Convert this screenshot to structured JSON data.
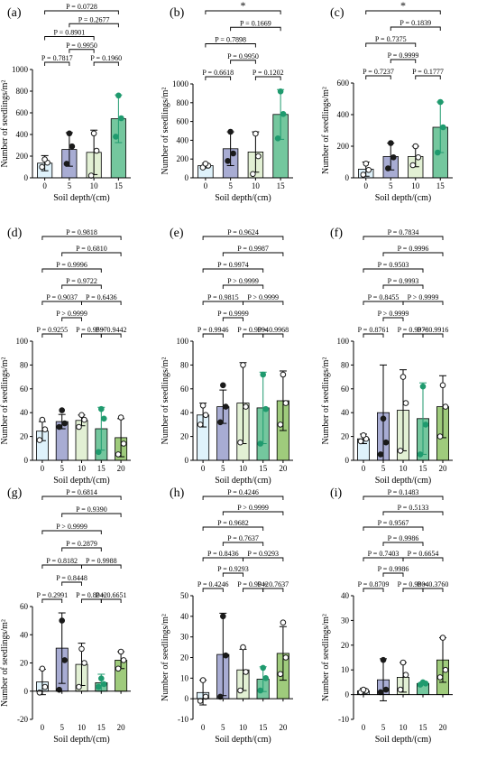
{
  "colors": {
    "d0": "#dff2fb",
    "d5": "#a8acd3",
    "d10": "#e2f0d4",
    "d15": "#74c79e",
    "d20": "#9fcb7c",
    "dot_dark": "#1a1a1a",
    "dot_green": "#1f9a6e"
  },
  "axis_title_x": "Soil depth/(cm)",
  "axis_title_y": "Number of seedlings/m²",
  "chart_data": [
    {
      "panel": "(a)",
      "type": "bar",
      "categories": [
        "0",
        "5",
        "10",
        "15"
      ],
      "values": [
        135,
        262,
        235,
        545
      ],
      "errors": [
        70,
        155,
        205,
        220
      ],
      "points": [
        [
          100,
          140,
          170
        ],
        [
          130,
          290,
          410
        ],
        [
          20,
          250,
          410
        ],
        [
          380,
          550,
          760
        ]
      ],
      "ylim": [
        0,
        1000
      ],
      "yticks": [
        0,
        200,
        400,
        600,
        800,
        1000
      ],
      "comparisons": [
        {
          "i": 0,
          "j": 3,
          "label": "P = 0.0728"
        },
        {
          "i": 1,
          "j": 3,
          "label": "P = 0.2677"
        },
        {
          "i": 0,
          "j": 2,
          "label": "P = 0.8901"
        },
        {
          "i": 1,
          "j": 2,
          "label": "P = 0.9950"
        },
        {
          "i": 0,
          "j": 1,
          "label": "P = 0.7817"
        },
        {
          "i": 2,
          "j": 3,
          "label": "P = 0.1960"
        }
      ]
    },
    {
      "panel": "(b)",
      "type": "bar",
      "categories": [
        "0",
        "5",
        "10",
        "15"
      ],
      "values": [
        130,
        310,
        275,
        675
      ],
      "errors": [
        25,
        180,
        215,
        265
      ],
      "points": [
        [
          110,
          130,
          150
        ],
        [
          180,
          260,
          490
        ],
        [
          40,
          230,
          470
        ],
        [
          420,
          680,
          920
        ]
      ],
      "ylim": [
        0,
        1000
      ],
      "yticks": [
        0,
        200,
        400,
        600,
        800,
        1000
      ],
      "comparisons": [
        {
          "i": 0,
          "j": 3,
          "label": "*"
        },
        {
          "i": 1,
          "j": 3,
          "label": "P = 0.1669"
        },
        {
          "i": 0,
          "j": 2,
          "label": "P = 0.7898"
        },
        {
          "i": 1,
          "j": 2,
          "label": "P = 0.9950"
        },
        {
          "i": 0,
          "j": 1,
          "label": "P = 0.6618"
        },
        {
          "i": 2,
          "j": 3,
          "label": "P = 0.1202"
        }
      ]
    },
    {
      "panel": "(c)",
      "type": "bar",
      "categories": [
        "0",
        "5",
        "10",
        "15"
      ],
      "values": [
        55,
        135,
        135,
        320
      ],
      "errors": [
        45,
        85,
        65,
        160
      ],
      "points": [
        [
          20,
          50,
          90
        ],
        [
          60,
          130,
          220
        ],
        [
          80,
          130,
          200
        ],
        [
          160,
          320,
          480
        ]
      ],
      "ylim": [
        0,
        600
      ],
      "yticks": [
        0,
        200,
        400,
        600
      ],
      "comparisons": [
        {
          "i": 0,
          "j": 3,
          "label": "*"
        },
        {
          "i": 1,
          "j": 3,
          "label": "P = 0.1839"
        },
        {
          "i": 0,
          "j": 2,
          "label": "P = 0.7375"
        },
        {
          "i": 1,
          "j": 2,
          "label": "P = 0.9999"
        },
        {
          "i": 0,
          "j": 1,
          "label": "P = 0.7237"
        },
        {
          "i": 2,
          "j": 3,
          "label": "P = 0.1777"
        }
      ]
    },
    {
      "panel": "(d)",
      "type": "bar",
      "categories": [
        "0",
        "5",
        "10",
        "15",
        "20"
      ],
      "values": [
        24.5,
        32.5,
        33.5,
        26.5,
        19
      ],
      "errors": [
        8,
        6,
        4.5,
        18,
        16
      ],
      "points": [
        [
          17,
          26,
          34
        ],
        [
          28,
          31,
          42
        ],
        [
          28,
          34,
          38
        ],
        [
          7,
          35,
          43
        ],
        [
          5,
          14,
          36
        ]
      ],
      "ylim": [
        0,
        100
      ],
      "yticks": [
        0,
        20,
        40,
        60,
        80,
        100
      ],
      "comparisons": [
        {
          "i": 0,
          "j": 4,
          "label": "P = 0.9818"
        },
        {
          "i": 1,
          "j": 4,
          "label": "P = 0.6810"
        },
        {
          "i": 0,
          "j": 3,
          "label": "P = 0.9996"
        },
        {
          "i": 1,
          "j": 3,
          "label": "P = 0.9722"
        },
        {
          "i": 0,
          "j": 2,
          "label": "P = 0.9037"
        },
        {
          "i": 2,
          "j": 4,
          "label": "P = 0.6436"
        },
        {
          "i": 1,
          "j": 2,
          "label": "P > 0.9999"
        },
        {
          "i": 0,
          "j": 1,
          "label": "P = 0.9255"
        },
        {
          "i": 2,
          "j": 3,
          "label": "P = 0.9597"
        },
        {
          "i": 3,
          "j": 4,
          "label": "P = 0.9442"
        }
      ]
    },
    {
      "panel": "(e)",
      "type": "bar",
      "categories": [
        "0",
        "5",
        "10",
        "15",
        "20"
      ],
      "values": [
        38,
        45,
        48,
        44,
        50
      ],
      "errors": [
        10,
        14,
        34,
        30,
        25
      ],
      "points": [
        [
          30,
          38,
          46
        ],
        [
          32,
          45,
          63
        ],
        [
          15,
          45,
          80
        ],
        [
          14,
          43,
          72
        ],
        [
          30,
          48,
          72
        ]
      ],
      "ylim": [
        0,
        100
      ],
      "yticks": [
        0,
        20,
        40,
        60,
        80,
        100
      ],
      "comparisons": [
        {
          "i": 0,
          "j": 4,
          "label": "P = 0.9624"
        },
        {
          "i": 1,
          "j": 4,
          "label": "P = 0.9987"
        },
        {
          "i": 0,
          "j": 3,
          "label": "P = 0.9974"
        },
        {
          "i": 1,
          "j": 3,
          "label": "P > 0.9999"
        },
        {
          "i": 0,
          "j": 2,
          "label": "P = 0.9815"
        },
        {
          "i": 2,
          "j": 4,
          "label": "P > 0.9999"
        },
        {
          "i": 1,
          "j": 2,
          "label": "P = 0.9999"
        },
        {
          "i": 0,
          "j": 1,
          "label": "P = 0.9946"
        },
        {
          "i": 2,
          "j": 3,
          "label": "P = 0.9994"
        },
        {
          "i": 3,
          "j": 4,
          "label": "P = 0.9968"
        }
      ]
    },
    {
      "panel": "(f)",
      "type": "bar",
      "categories": [
        "0",
        "5",
        "10",
        "15",
        "20"
      ],
      "values": [
        18,
        40,
        42,
        35,
        45
      ],
      "errors": [
        4,
        40,
        34,
        30,
        26
      ],
      "points": [
        [
          16,
          18,
          21
        ],
        [
          5,
          15,
          35
        ],
        [
          8,
          48,
          70
        ],
        [
          5,
          30,
          62
        ],
        [
          20,
          45,
          63
        ]
      ],
      "ylim": [
        0,
        100
      ],
      "yticks": [
        0,
        20,
        40,
        60,
        80,
        100
      ],
      "comparisons": [
        {
          "i": 0,
          "j": 4,
          "label": "P = 0.7834"
        },
        {
          "i": 1,
          "j": 4,
          "label": "P = 0.9996"
        },
        {
          "i": 0,
          "j": 3,
          "label": "P = 0.9503"
        },
        {
          "i": 1,
          "j": 3,
          "label": "P = 0.9993"
        },
        {
          "i": 0,
          "j": 2,
          "label": "P = 0.8455"
        },
        {
          "i": 2,
          "j": 4,
          "label": "P > 0.9999"
        },
        {
          "i": 1,
          "j": 2,
          "label": "P > 0.9999"
        },
        {
          "i": 0,
          "j": 1,
          "label": "P = 0.8761"
        },
        {
          "i": 2,
          "j": 3,
          "label": "P = 0.9978"
        },
        {
          "i": 3,
          "j": 4,
          "label": "P = 0.9916"
        }
      ]
    },
    {
      "panel": "(g)",
      "type": "bar",
      "categories": [
        "0",
        "5",
        "10",
        "15",
        "20"
      ],
      "values": [
        6.5,
        30.5,
        19,
        6,
        22
      ],
      "errors": [
        9,
        25,
        15,
        6,
        6
      ],
      "points": [
        [
          -1,
          3,
          16
        ],
        [
          1,
          22,
          50
        ],
        [
          3,
          20,
          30
        ],
        [
          3,
          5,
          9
        ],
        [
          16,
          22,
          28
        ]
      ],
      "ylim": [
        -20,
        60
      ],
      "yticks": [
        -20,
        0,
        20,
        40,
        60
      ],
      "comparisons": [
        {
          "i": 0,
          "j": 4,
          "label": "P = 0.6814"
        },
        {
          "i": 1,
          "j": 4,
          "label": "P = 0.9390"
        },
        {
          "i": 0,
          "j": 3,
          "label": "P > 0.9999"
        },
        {
          "i": 1,
          "j": 3,
          "label": "P = 0.2879"
        },
        {
          "i": 0,
          "j": 2,
          "label": "P = 0.8182"
        },
        {
          "i": 2,
          "j": 4,
          "label": "P = 0.9988"
        },
        {
          "i": 1,
          "j": 2,
          "label": "P = 0.8448"
        },
        {
          "i": 0,
          "j": 1,
          "label": "P = 0.2991"
        },
        {
          "i": 2,
          "j": 3,
          "label": "P = 0.8042"
        },
        {
          "i": 3,
          "j": 4,
          "label": "P = 0.6651"
        }
      ]
    },
    {
      "panel": "(h)",
      "type": "bar",
      "categories": [
        "0",
        "5",
        "10",
        "15",
        "20"
      ],
      "values": [
        3,
        21.5,
        14,
        9.5,
        22
      ],
      "errors": [
        6,
        20,
        10,
        6,
        13
      ],
      "points": [
        [
          -1,
          1,
          9
        ],
        [
          1,
          21,
          40
        ],
        [
          4,
          13,
          25
        ],
        [
          4,
          10,
          15
        ],
        [
          12,
          20,
          37
        ]
      ],
      "ylim": [
        -10,
        50
      ],
      "yticks": [
        -10,
        0,
        10,
        20,
        30,
        40,
        50
      ],
      "comparisons": [
        {
          "i": 0,
          "j": 4,
          "label": "P = 0.4246"
        },
        {
          "i": 1,
          "j": 4,
          "label": "P > 0.9999"
        },
        {
          "i": 0,
          "j": 3,
          "label": "P = 0.9682"
        },
        {
          "i": 1,
          "j": 3,
          "label": "P = 0.7637"
        },
        {
          "i": 0,
          "j": 2,
          "label": "P = 0.8436"
        },
        {
          "i": 2,
          "j": 4,
          "label": "P = 0.9293"
        },
        {
          "i": 1,
          "j": 2,
          "label": "P = 0.9293"
        },
        {
          "i": 0,
          "j": 1,
          "label": "P = 0.4246"
        },
        {
          "i": 2,
          "j": 3,
          "label": "P = 0.9942"
        },
        {
          "i": 3,
          "j": 4,
          "label": "P = 0.7637"
        }
      ]
    },
    {
      "panel": "(i)",
      "type": "bar",
      "categories": [
        "0",
        "5",
        "10",
        "15",
        "20"
      ],
      "values": [
        1.5,
        6,
        7,
        4.5,
        14
      ],
      "errors": [
        1,
        8.5,
        6,
        0.5,
        9
      ],
      "points": [
        [
          1,
          1.5,
          2
        ],
        [
          1,
          2,
          14
        ],
        [
          2,
          8,
          13
        ],
        [
          4,
          4.5,
          5
        ],
        [
          7,
          10,
          23
        ]
      ],
      "ylim": [
        -10,
        40
      ],
      "yticks": [
        -10,
        0,
        10,
        20,
        30,
        40
      ],
      "comparisons": [
        {
          "i": 0,
          "j": 4,
          "label": "P = 0.1483"
        },
        {
          "i": 1,
          "j": 4,
          "label": "P = 0.5133"
        },
        {
          "i": 0,
          "j": 3,
          "label": "P = 0.9567"
        },
        {
          "i": 1,
          "j": 3,
          "label": "P = 0.9986"
        },
        {
          "i": 0,
          "j": 2,
          "label": "P = 0.7403"
        },
        {
          "i": 2,
          "j": 4,
          "label": "P = 0.6654"
        },
        {
          "i": 1,
          "j": 2,
          "label": "P = 0.9986"
        },
        {
          "i": 0,
          "j": 1,
          "label": "P = 0.8709"
        },
        {
          "i": 2,
          "j": 3,
          "label": "P = 0.9804"
        },
        {
          "i": 3,
          "j": 4,
          "label": "P = 0.3760"
        }
      ]
    }
  ]
}
